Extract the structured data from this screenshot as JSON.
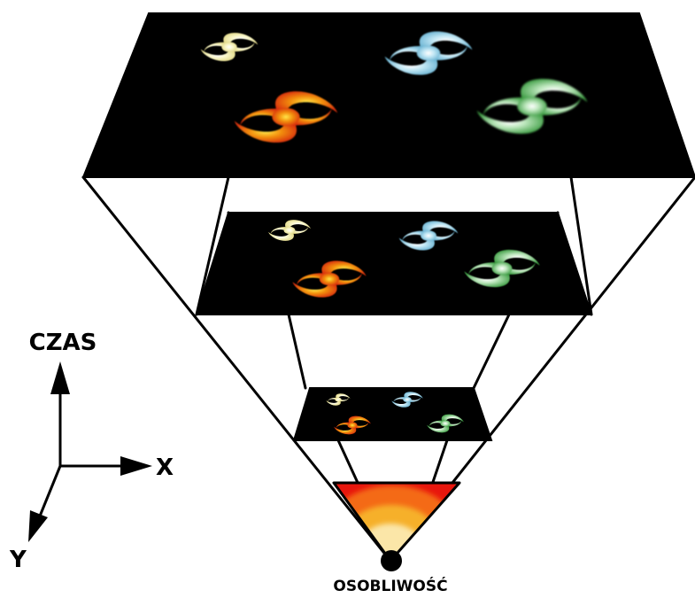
{
  "axes": {
    "time_label": "CZAS",
    "x_label": "X",
    "y_label": "Y"
  },
  "singularity": {
    "label": "OSOBLIWOŚĆ"
  },
  "colors": {
    "galaxy_yellow": "#f4f0a0",
    "galaxy_blue": "#8fd0e8",
    "galaxy_orange": "#e8550a",
    "galaxy_green": "#5bb85b",
    "heat_outer": "#e8120e",
    "heat_mid": "#f6a41e",
    "heat_inner": "#fbe08a",
    "slice": "#000000"
  },
  "slices": [
    {
      "name": "slice-far",
      "galaxies": [
        "yellow",
        "blue",
        "orange",
        "green"
      ]
    },
    {
      "name": "slice-middle",
      "galaxies": [
        "yellow",
        "blue",
        "orange",
        "green"
      ]
    },
    {
      "name": "slice-near",
      "galaxies": [
        "yellow",
        "blue",
        "orange",
        "green"
      ]
    }
  ]
}
